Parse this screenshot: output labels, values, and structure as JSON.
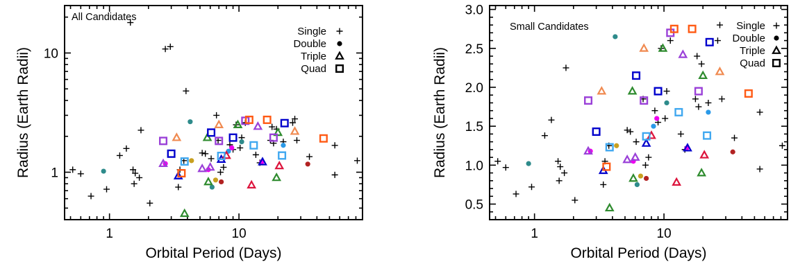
{
  "colors": {
    "single": "#000000",
    "teal": "#2e8b8b",
    "gold": "#c8a020",
    "darkred": "#b22222",
    "magenta": "#ee00ee",
    "lightblue": "#2a9ae8",
    "green": "#2e8b2e",
    "orange": "#f08a50",
    "red": "#dc143c",
    "purple": "#9a40d8",
    "blue": "#0000cc",
    "orangered": "#ff5a14",
    "skyblue": "#40a8f0"
  },
  "chart_data": [
    {
      "type": "scatter",
      "title": "All Candidates",
      "xlabel": "Orbital Period (Days)",
      "ylabel": "Radius (Earth Radii)",
      "xscale": "log",
      "yscale": "log",
      "xlim": [
        0.45,
        90
      ],
      "ylim": [
        0.4,
        25
      ],
      "xticks": [
        1,
        10
      ],
      "xtick_labels": [
        "1",
        "10"
      ],
      "yticks": [
        1,
        10
      ],
      "ytick_labels": [
        "1",
        "10"
      ],
      "legend_position": "top-right",
      "legend": [
        {
          "label": "Single",
          "marker": "plus"
        },
        {
          "label": "Double",
          "marker": "dot"
        },
        {
          "label": "Triple",
          "marker": "triangle"
        },
        {
          "label": "Quad",
          "marker": "square"
        }
      ],
      "series": [
        {
          "name": "Single",
          "marker": "plus",
          "color": "#000000",
          "points": [
            [
              0.52,
              1.05
            ],
            [
              0.6,
              0.97
            ],
            [
              0.72,
              0.63
            ],
            [
              0.95,
              0.72
            ],
            [
              1.2,
              1.38
            ],
            [
              1.35,
              1.58
            ],
            [
              1.45,
              18
            ],
            [
              1.55,
              0.8
            ],
            [
              1.52,
              1.05
            ],
            [
              1.58,
              0.98
            ],
            [
              1.7,
              0.9
            ],
            [
              1.75,
              2.25
            ],
            [
              2.05,
              0.55
            ],
            [
              2.7,
              10.8
            ],
            [
              2.95,
              11.3
            ],
            [
              3.5,
              1.05
            ],
            [
              3.4,
              0.75
            ],
            [
              3.9,
              4.8
            ],
            [
              3.75,
              1.25
            ],
            [
              5.2,
              1.45
            ],
            [
              5.5,
              1.43
            ],
            [
              6.1,
              1.3
            ],
            [
              6.7,
              3.0
            ],
            [
              6.9,
              1.85
            ],
            [
              7.2,
              1.0
            ],
            [
              7.6,
              1.1
            ],
            [
              8.5,
              1.7
            ],
            [
              9.0,
              1.55
            ],
            [
              9.5,
              2.5
            ],
            [
              10.2,
              1.6
            ],
            [
              10.5,
              1.95
            ],
            [
              11.2,
              2.6
            ],
            [
              13.5,
              1.4
            ],
            [
              14.5,
              1.2
            ],
            [
              17.5,
              1.85
            ],
            [
              18.5,
              1.75
            ],
            [
              18.0,
              2.4
            ],
            [
              19.5,
              2.3
            ],
            [
              22,
              1.8
            ],
            [
              26,
              2.6
            ],
            [
              27,
              2.8
            ],
            [
              28,
              1.85
            ],
            [
              35,
              1.35
            ],
            [
              55,
              1.68
            ],
            [
              55,
              0.95
            ],
            [
              82,
              1.25
            ]
          ]
        },
        {
          "name": "Double",
          "marker": "dot",
          "points": [
            [
              0.9,
              1.02,
              "teal"
            ],
            [
              4.2,
              2.65,
              "teal"
            ],
            [
              6.2,
              0.75,
              "teal"
            ],
            [
              4.3,
              1.25,
              "gold"
            ],
            [
              6.6,
              0.86,
              "gold"
            ],
            [
              7.3,
              0.83,
              "darkred"
            ],
            [
              34,
              1.17,
              "darkred"
            ],
            [
              2.7,
              1.18,
              "magenta"
            ],
            [
              5.8,
              1.05,
              "magenta"
            ],
            [
              8.8,
              1.6,
              "magenta"
            ],
            [
              15,
              1.22,
              "magenta"
            ],
            [
              8.3,
              1.5,
              "lightblue"
            ],
            [
              22,
              1.68,
              "lightblue"
            ],
            [
              10.5,
              1.8,
              "teal"
            ]
          ]
        },
        {
          "name": "Triple",
          "marker": "triangle",
          "points": [
            [
              3.8,
              0.45,
              "green"
            ],
            [
              5.7,
              1.95,
              "green"
            ],
            [
              5.8,
              0.83,
              "green"
            ],
            [
              9.8,
              2.5,
              "green"
            ],
            [
              20,
              2.15,
              "green"
            ],
            [
              19.5,
              0.9,
              "green"
            ],
            [
              3.3,
              1.95,
              "orange"
            ],
            [
              7.0,
              2.5,
              "orange"
            ],
            [
              27,
              2.2,
              "orange"
            ],
            [
              5.2,
              1.07,
              "purple"
            ],
            [
              6.0,
              1.1,
              "purple"
            ],
            [
              14.0,
              2.42,
              "purple"
            ],
            [
              2.6,
              1.18,
              "purple"
            ],
            [
              3.4,
              0.93,
              "blue"
            ],
            [
              7.3,
              1.28,
              "blue"
            ],
            [
              15.2,
              1.22,
              "blue"
            ],
            [
              8.0,
              1.38,
              "red"
            ],
            [
              12.5,
              0.78,
              "red"
            ],
            [
              20.5,
              1.13,
              "red"
            ]
          ]
        },
        {
          "name": "Quad",
          "marker": "square",
          "points": [
            [
              2.6,
              1.83,
              "purple"
            ],
            [
              7.0,
              1.83,
              "purple"
            ],
            [
              11.2,
              2.7,
              "purple"
            ],
            [
              18.5,
              1.95,
              "purple"
            ],
            [
              3.0,
              1.43,
              "blue"
            ],
            [
              6.1,
              2.15,
              "blue"
            ],
            [
              9.0,
              1.95,
              "blue"
            ],
            [
              22.5,
              2.58,
              "blue"
            ],
            [
              3.6,
              0.98,
              "orangered"
            ],
            [
              12.0,
              2.75,
              "orangered"
            ],
            [
              16.5,
              2.75,
              "orangered"
            ],
            [
              45,
              1.92,
              "orangered"
            ],
            [
              3.8,
              1.23,
              "skyblue"
            ],
            [
              7.3,
              1.37,
              "skyblue"
            ],
            [
              13.0,
              1.68,
              "skyblue"
            ],
            [
              21.5,
              1.38,
              "skyblue"
            ]
          ]
        }
      ]
    },
    {
      "type": "scatter",
      "title": "Small Candidates",
      "xlabel": "Orbital Period (Days)",
      "ylabel": "Radius (Earth Radii)",
      "xscale": "log",
      "yscale": "linear",
      "xlim": [
        0.45,
        90
      ],
      "ylim": [
        0.3,
        3.05
      ],
      "xticks": [
        1,
        10
      ],
      "xtick_labels": [
        "1",
        "10"
      ],
      "yticks": [
        0.5,
        1.0,
        1.5,
        2.0,
        2.5,
        3.0
      ],
      "ytick_labels": [
        "0.5",
        "1.0",
        "1.5",
        "2.0",
        "2.5",
        "3.0"
      ],
      "legend_position": "top-right",
      "legend": [
        {
          "label": "Single",
          "marker": "plus"
        },
        {
          "label": "Double",
          "marker": "dot"
        },
        {
          "label": "Triple",
          "marker": "triangle"
        },
        {
          "label": "Quad",
          "marker": "square"
        }
      ],
      "series": [
        {
          "name": "Single",
          "marker": "plus",
          "color": "#000000",
          "points": [
            [
              0.52,
              1.05
            ],
            [
              0.6,
              0.97
            ],
            [
              0.72,
              0.63
            ],
            [
              0.95,
              0.72
            ],
            [
              1.2,
              1.38
            ],
            [
              1.35,
              1.58
            ],
            [
              1.55,
              0.8
            ],
            [
              1.52,
              1.05
            ],
            [
              1.58,
              0.98
            ],
            [
              1.7,
              0.9
            ],
            [
              1.75,
              2.25
            ],
            [
              2.05,
              0.55
            ],
            [
              3.5,
              1.05
            ],
            [
              3.4,
              0.75
            ],
            [
              3.75,
              1.25
            ],
            [
              5.2,
              1.45
            ],
            [
              5.5,
              1.43
            ],
            [
              6.1,
              1.3
            ],
            [
              6.9,
              1.85
            ],
            [
              7.2,
              1.0
            ],
            [
              7.6,
              1.1
            ],
            [
              8.5,
              1.7
            ],
            [
              9.0,
              1.55
            ],
            [
              9.5,
              2.5
            ],
            [
              10.2,
              1.6
            ],
            [
              10.5,
              1.95
            ],
            [
              11.2,
              2.6
            ],
            [
              13.5,
              1.4
            ],
            [
              14.5,
              1.2
            ],
            [
              17.5,
              1.85
            ],
            [
              18.5,
              1.75
            ],
            [
              18.0,
              2.4
            ],
            [
              19.5,
              2.3
            ],
            [
              22,
              1.8
            ],
            [
              26,
              2.6
            ],
            [
              27,
              2.8
            ],
            [
              28,
              1.85
            ],
            [
              35,
              1.35
            ],
            [
              55,
              1.68
            ],
            [
              55,
              0.95
            ],
            [
              82,
              1.25
            ]
          ]
        },
        {
          "name": "Double",
          "marker": "dot",
          "points": [
            [
              0.9,
              1.02,
              "teal"
            ],
            [
              4.2,
              2.65,
              "teal"
            ],
            [
              6.2,
              0.75,
              "teal"
            ],
            [
              4.3,
              1.25,
              "gold"
            ],
            [
              6.6,
              0.86,
              "gold"
            ],
            [
              7.3,
              0.83,
              "darkred"
            ],
            [
              34,
              1.17,
              "darkred"
            ],
            [
              2.7,
              1.18,
              "magenta"
            ],
            [
              5.8,
              1.05,
              "magenta"
            ],
            [
              8.8,
              1.6,
              "magenta"
            ],
            [
              15,
              1.22,
              "magenta"
            ],
            [
              8.3,
              1.5,
              "lightblue"
            ],
            [
              22,
              1.68,
              "lightblue"
            ],
            [
              10.5,
              1.8,
              "teal"
            ]
          ]
        },
        {
          "name": "Triple",
          "marker": "triangle",
          "points": [
            [
              3.8,
              0.45,
              "green"
            ],
            [
              5.7,
              1.95,
              "green"
            ],
            [
              5.8,
              0.83,
              "green"
            ],
            [
              9.8,
              2.5,
              "green"
            ],
            [
              20,
              2.15,
              "green"
            ],
            [
              19.5,
              0.9,
              "green"
            ],
            [
              3.3,
              1.95,
              "orange"
            ],
            [
              7.0,
              2.5,
              "orange"
            ],
            [
              27,
              2.2,
              "orange"
            ],
            [
              5.2,
              1.07,
              "purple"
            ],
            [
              6.0,
              1.1,
              "purple"
            ],
            [
              14.0,
              2.42,
              "purple"
            ],
            [
              2.6,
              1.18,
              "purple"
            ],
            [
              3.4,
              0.93,
              "blue"
            ],
            [
              7.3,
              1.28,
              "blue"
            ],
            [
              15.2,
              1.22,
              "blue"
            ],
            [
              8.0,
              1.38,
              "red"
            ],
            [
              12.5,
              0.78,
              "red"
            ],
            [
              20.5,
              1.13,
              "red"
            ]
          ]
        },
        {
          "name": "Quad",
          "marker": "square",
          "points": [
            [
              2.6,
              1.83,
              "purple"
            ],
            [
              7.0,
              1.83,
              "purple"
            ],
            [
              11.2,
              2.7,
              "purple"
            ],
            [
              18.5,
              1.95,
              "purple"
            ],
            [
              3.0,
              1.43,
              "blue"
            ],
            [
              6.1,
              2.15,
              "blue"
            ],
            [
              9.0,
              1.95,
              "blue"
            ],
            [
              22.5,
              2.58,
              "blue"
            ],
            [
              3.6,
              0.98,
              "orangered"
            ],
            [
              12.0,
              2.75,
              "orangered"
            ],
            [
              16.5,
              2.75,
              "orangered"
            ],
            [
              45,
              1.92,
              "orangered"
            ],
            [
              3.8,
              1.23,
              "skyblue"
            ],
            [
              7.3,
              1.37,
              "skyblue"
            ],
            [
              13.0,
              1.68,
              "skyblue"
            ],
            [
              21.5,
              1.38,
              "skyblue"
            ]
          ]
        }
      ]
    }
  ]
}
